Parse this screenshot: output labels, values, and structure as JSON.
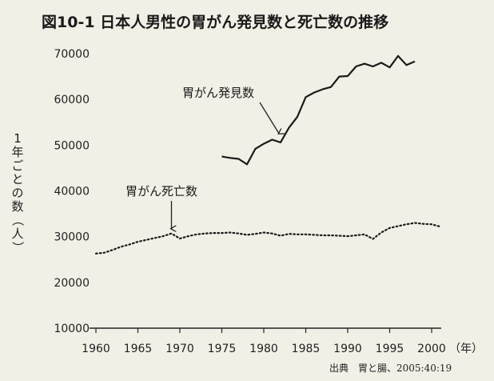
{
  "chart_data": {
    "type": "line",
    "title": "図10-1 日本人男性の胃がん発見数と死亡数の推移",
    "ylabel": "1年ごとの数（人）",
    "xlabel": "",
    "x_unit_label": "（年）",
    "ylim": [
      10000,
      70000
    ],
    "xlim": [
      1960,
      2002
    ],
    "yticks": [
      10000,
      20000,
      30000,
      40000,
      50000,
      60000,
      70000
    ],
    "ytick_labels": [
      "10000",
      "20000",
      "30000",
      "40000",
      "50000",
      "60000",
      "70000"
    ],
    "xticks": [
      1960,
      1965,
      1970,
      1975,
      1980,
      1985,
      1990,
      1995,
      2000
    ],
    "xtick_labels": [
      "1960",
      "1965",
      "1970",
      "1975",
      "1980",
      "1985",
      "1990",
      "1995",
      "2000"
    ],
    "grid": false,
    "series": [
      {
        "name": "胃がん発見数",
        "style": "solid",
        "x": [
          1975,
          1976,
          1977,
          1978,
          1979,
          1980,
          1981,
          1982,
          1983,
          1984,
          1985,
          1986,
          1987,
          1988,
          1989,
          1990,
          1991,
          1992,
          1993,
          1994,
          1995,
          1996,
          1997,
          1998
        ],
        "y": [
          47500,
          47200,
          47000,
          45800,
          49200,
          50300,
          51200,
          50600,
          53800,
          56200,
          60500,
          61500,
          62200,
          62700,
          65000,
          65100,
          67200,
          67800,
          67200,
          68000,
          67000,
          69500,
          67500,
          68300
        ]
      },
      {
        "name": "胃がん死亡数",
        "style": "dotted",
        "x": [
          1960,
          1961,
          1962,
          1963,
          1964,
          1965,
          1966,
          1967,
          1968,
          1969,
          1970,
          1971,
          1972,
          1973,
          1974,
          1975,
          1976,
          1977,
          1978,
          1979,
          1980,
          1981,
          1982,
          1983,
          1984,
          1985,
          1986,
          1987,
          1988,
          1989,
          1990,
          1991,
          1992,
          1993,
          1994,
          1995,
          1996,
          1997,
          1998,
          1999,
          2000,
          2001
        ],
        "y": [
          26300,
          26500,
          27100,
          27800,
          28300,
          28900,
          29300,
          29700,
          30100,
          30700,
          29600,
          30100,
          30500,
          30700,
          30800,
          30800,
          30900,
          30700,
          30400,
          30600,
          30900,
          30700,
          30200,
          30600,
          30500,
          30500,
          30400,
          30300,
          30300,
          30200,
          30100,
          30300,
          30500,
          29500,
          30900,
          31900,
          32300,
          32700,
          33000,
          32800,
          32700,
          32200
        ]
      }
    ],
    "annotations": [
      {
        "text": "胃がん発見数",
        "points_to_x": 1982
      },
      {
        "text": "胃がん死亡数",
        "points_to_x": 1969
      }
    ],
    "source": "出典　胃と腸、2005:40:19"
  }
}
